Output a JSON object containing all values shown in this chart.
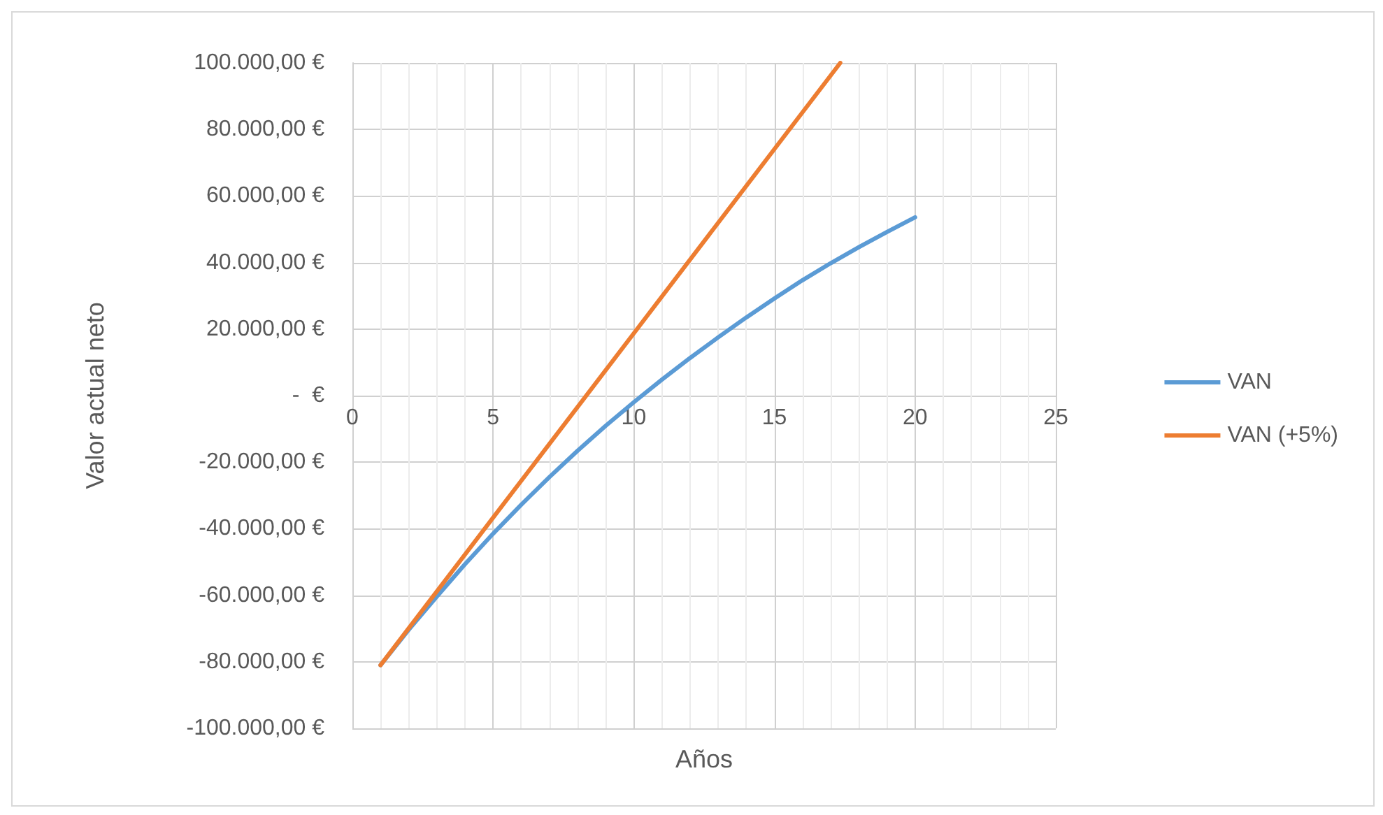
{
  "chart_data": {
    "type": "line",
    "xlabel": "Años",
    "ylabel": "Valor actual neto",
    "xlim": [
      0,
      25
    ],
    "xticks": [
      0,
      5,
      10,
      15,
      20,
      25
    ],
    "ylim": [
      -100000,
      100000
    ],
    "yticks": [
      {
        "value": -100000,
        "label": "-100.000,00 €"
      },
      {
        "value": -80000,
        "label": "-80.000,00 €"
      },
      {
        "value": -60000,
        "label": "-60.000,00 €"
      },
      {
        "value": -40000,
        "label": "-40.000,00 €"
      },
      {
        "value": -20000,
        "label": "-20.000,00 €"
      },
      {
        "value": 0,
        "label": "-  €"
      },
      {
        "value": 20000,
        "label": "20.000,00 €"
      },
      {
        "value": 40000,
        "label": "40.000,00 €"
      },
      {
        "value": 60000,
        "label": "60.000,00 €"
      },
      {
        "value": 80000,
        "label": "80.000,00 €"
      },
      {
        "value": 100000,
        "label": "100.000,00 €"
      }
    ],
    "grid": true,
    "legend": "right",
    "marker": "none",
    "line_style": "solid",
    "series": [
      {
        "name": "VAN",
        "color": "#5b9bd5",
        "x": [
          1,
          2,
          3,
          4,
          5,
          6,
          7,
          8,
          9,
          10,
          11,
          12,
          13,
          14,
          15,
          16,
          17,
          18,
          19,
          20
        ],
        "values": [
          -81000,
          -70400,
          -60400,
          -50700,
          -41500,
          -32800,
          -24500,
          -16600,
          -9100,
          -2000,
          4800,
          11300,
          17500,
          23500,
          29200,
          34700,
          39800,
          44600,
          49200,
          53600
        ]
      },
      {
        "name": "VAN (+5%)",
        "color": "#ed7d31",
        "x": [
          1,
          5,
          10,
          15,
          17.34
        ],
        "values": [
          -81000,
          -36700,
          18700,
          74100,
          100000
        ]
      }
    ]
  }
}
